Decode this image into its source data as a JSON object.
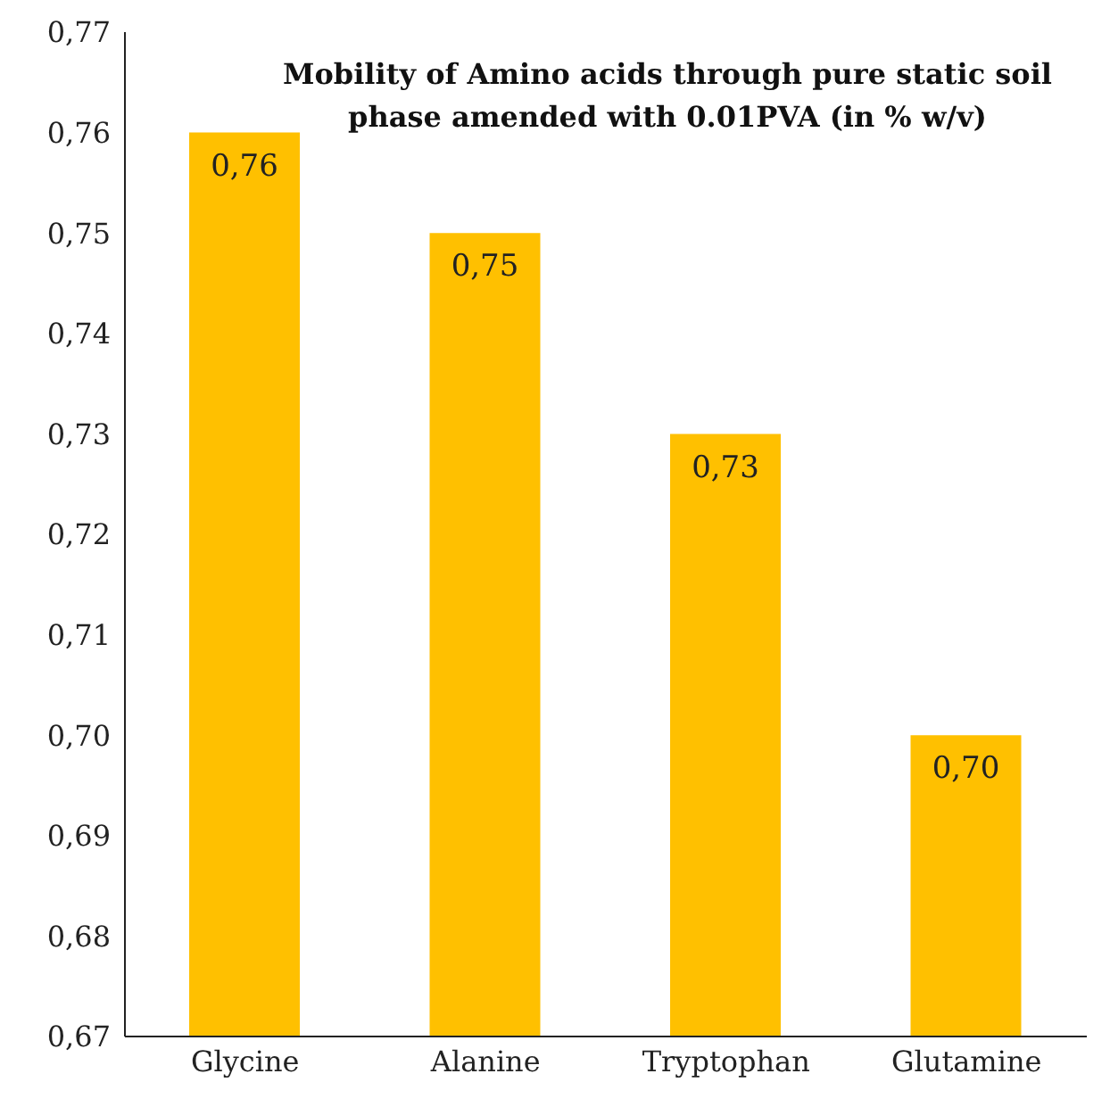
{
  "chart_data": {
    "type": "bar",
    "title": "Mobility of Amino acids through pure static soil phase amended with 0.01PVA (in % w/v)",
    "categories": [
      "Glycine",
      "Alanine",
      "Tryptophan",
      "Glutamine"
    ],
    "values": [
      0.76,
      0.75,
      0.73,
      0.7
    ],
    "value_labels": [
      "0,76",
      "0,75",
      "0,73",
      "0,70"
    ],
    "color": "#ffc000",
    "ylim": [
      0.67,
      0.77
    ],
    "yticks": [
      {
        "value": 0.67,
        "label": "0,67"
      },
      {
        "value": 0.68,
        "label": "0,68"
      },
      {
        "value": 0.69,
        "label": "0,69"
      },
      {
        "value": 0.7,
        "label": "0,70"
      },
      {
        "value": 0.71,
        "label": "0,71"
      },
      {
        "value": 0.72,
        "label": "0,72"
      },
      {
        "value": 0.73,
        "label": "0,73"
      },
      {
        "value": 0.74,
        "label": "0,74"
      },
      {
        "value": 0.75,
        "label": "0,75"
      },
      {
        "value": 0.76,
        "label": "0,76"
      },
      {
        "value": 0.77,
        "label": "0,77"
      }
    ],
    "grid": false,
    "legend": false
  }
}
